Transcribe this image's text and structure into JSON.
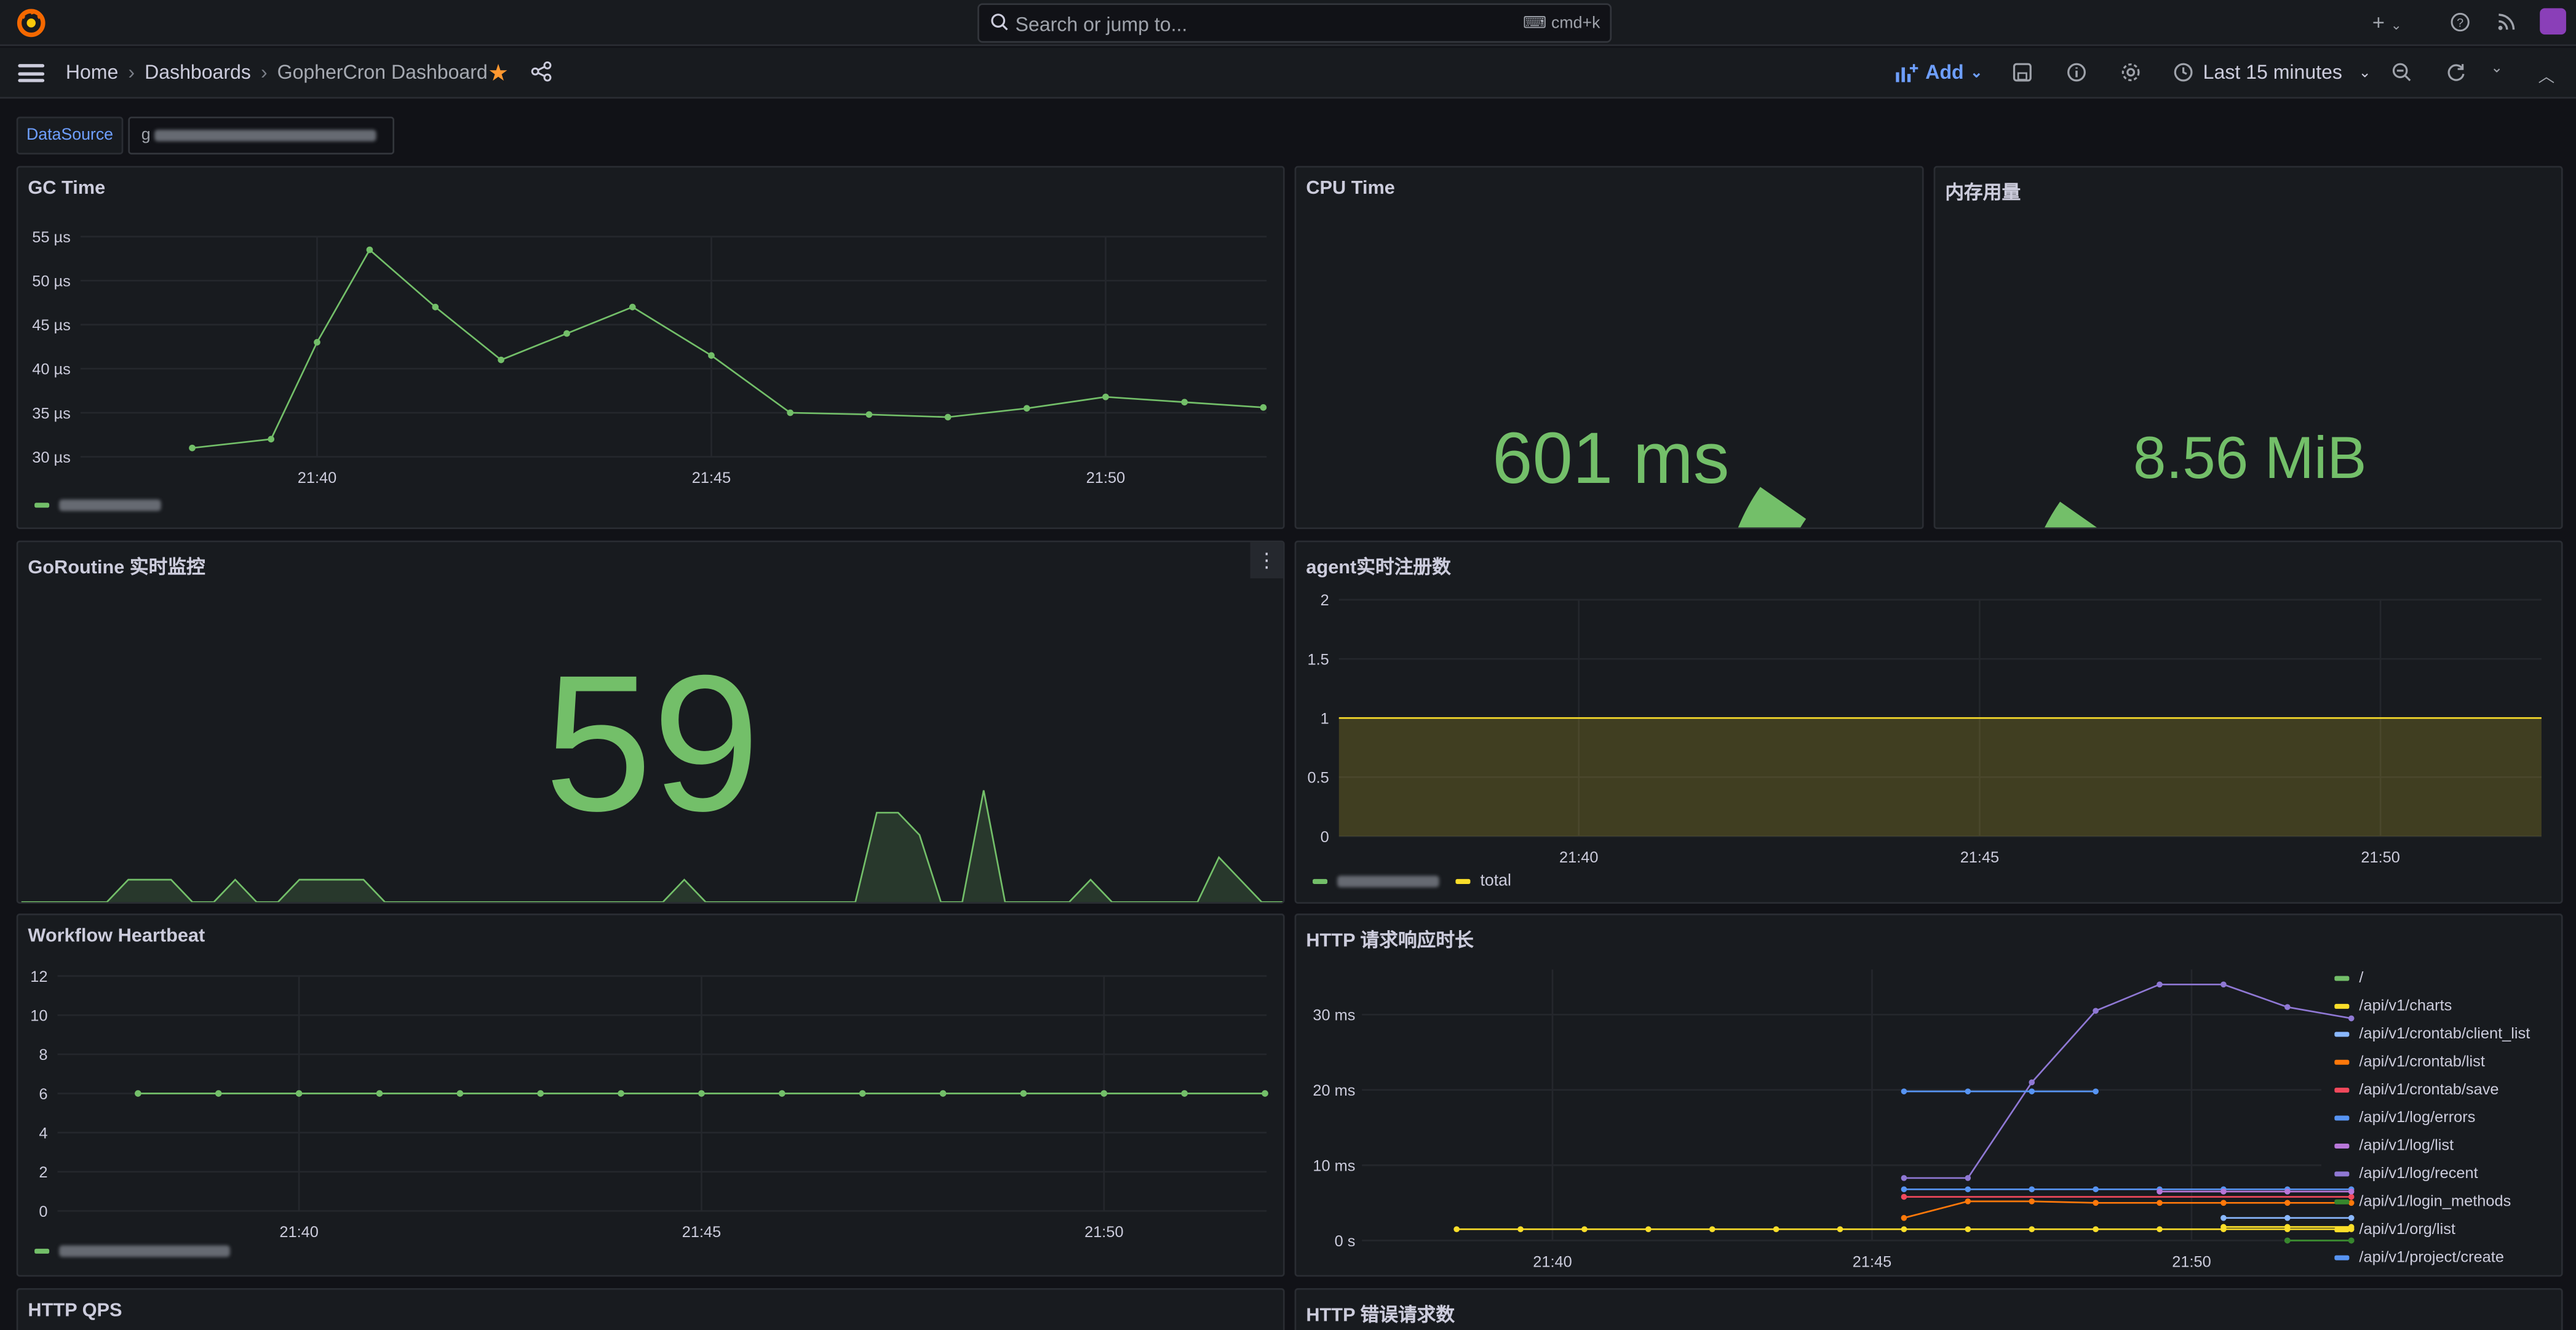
{
  "topbar": {
    "search_placeholder": "Search or jump to...",
    "search_shortcut": "cmd+k",
    "add_icon": "plus-icon",
    "help_icon": "help-icon",
    "news_icon": "rss-icon"
  },
  "breadcrumb": {
    "home": "Home",
    "dashboards": "Dashboards",
    "current": "GopherCron Dashboard"
  },
  "toolbar": {
    "add_label": "Add",
    "time_range": "Last 15 minutes"
  },
  "variables": {
    "datasource_label": "DataSource",
    "datasource_value": "g"
  },
  "colors": {
    "accent": "#6e9fff",
    "green": "#73bf69",
    "yellow": "#fade2a",
    "star": "#ff9830"
  },
  "panels": {
    "gc_time": {
      "title": "GC Time"
    },
    "cpu_time": {
      "title": "CPU Time",
      "value": "601 ms"
    },
    "memory": {
      "title": "内存用量",
      "value": "8.56 MiB"
    },
    "goroutine": {
      "title": "GoRoutine 实时监控",
      "value": "59"
    },
    "agent": {
      "title": "agent实时注册数",
      "legend_total": "total"
    },
    "workflow": {
      "title": "Workflow Heartbeat"
    },
    "http_latency": {
      "title": "HTTP 请求响应时长"
    },
    "http_qps": {
      "title": "HTTP QPS"
    },
    "http_errors": {
      "title": "HTTP 错误请求数"
    }
  },
  "chart_data": [
    {
      "id": "gc_time",
      "type": "line",
      "title": "GC Time",
      "x": [
        "21:38:25",
        "21:39:25",
        "21:40:00",
        "21:40:40",
        "21:41:30",
        "21:42:20",
        "21:43:10",
        "21:44:00",
        "21:45:00",
        "21:46:00",
        "21:47:00",
        "21:48:00",
        "21:49:00",
        "21:50:00",
        "21:51:00",
        "21:52:00"
      ],
      "values": [
        31,
        32,
        43,
        53.5,
        47,
        41,
        44,
        47,
        41.5,
        35,
        34.8,
        34.5,
        35.5,
        36.8,
        36.2,
        35.6
      ],
      "y_ticks": [
        "30 µs",
        "35 µs",
        "40 µs",
        "45 µs",
        "50 µs",
        "55 µs"
      ],
      "x_ticks": [
        "21:40",
        "21:45",
        "21:50"
      ],
      "unit": "µs",
      "ylim": [
        30,
        55
      ],
      "color": "#73bf69"
    },
    {
      "id": "cpu_time",
      "type": "gauge",
      "title": "CPU Time",
      "value": 601,
      "unit": "ms",
      "fill_fraction": 0.07,
      "color": "#73bf69"
    },
    {
      "id": "memory",
      "type": "gauge",
      "title": "内存用量",
      "value": 8.56,
      "unit": "MiB",
      "fill_fraction": 0.95,
      "color": "#73bf69"
    },
    {
      "id": "goroutine_spark",
      "type": "area",
      "title": "GoRoutine 实时监控",
      "value": 59,
      "values": [
        0,
        0,
        0,
        0,
        0,
        1,
        1,
        1,
        0,
        0,
        1,
        0,
        0,
        1,
        1,
        1,
        1,
        0,
        0,
        0,
        0,
        0,
        0,
        0,
        0,
        0,
        0,
        0,
        0,
        0,
        0,
        1,
        0,
        0,
        0,
        0,
        0,
        0,
        0,
        0,
        4,
        4,
        3,
        0,
        0,
        5,
        0,
        0,
        0,
        0,
        1,
        0,
        0,
        0,
        0,
        0,
        2,
        1,
        0,
        0
      ],
      "color": "#73bf69"
    },
    {
      "id": "agent",
      "type": "area",
      "title": "agent实时注册数",
      "y_ticks": [
        "0",
        "0.5",
        "1",
        "1.5",
        "2"
      ],
      "x_ticks": [
        "21:40",
        "21:45",
        "21:50"
      ],
      "ylim": [
        0,
        2
      ],
      "series": [
        {
          "name": "total",
          "values": [
            1,
            1
          ],
          "color": "#fade2a"
        }
      ]
    },
    {
      "id": "workflow",
      "type": "line",
      "title": "Workflow Heartbeat",
      "x": [
        "21:38:00",
        "21:39:00",
        "21:40:00",
        "21:41:00",
        "21:42:00",
        "21:43:00",
        "21:44:00",
        "21:45:00",
        "21:46:00",
        "21:47:00",
        "21:48:00",
        "21:49:00",
        "21:50:00",
        "21:51:00",
        "21:52:00"
      ],
      "values": [
        6,
        6,
        6,
        6,
        6,
        6,
        6,
        6,
        6,
        6,
        6,
        6,
        6,
        6,
        6
      ],
      "y_ticks": [
        "0",
        "2",
        "4",
        "6",
        "8",
        "10",
        "12"
      ],
      "x_ticks": [
        "21:40",
        "21:45",
        "21:50"
      ],
      "ylim": [
        0,
        12
      ],
      "color": "#73bf69"
    },
    {
      "id": "http_latency",
      "type": "line",
      "title": "HTTP 请求响应时长",
      "y_ticks": [
        "0 s",
        "10 ms",
        "20 ms",
        "30 ms"
      ],
      "x_ticks": [
        "21:40",
        "21:45",
        "21:50"
      ],
      "ylim": [
        0,
        36
      ],
      "unit": "ms",
      "x_minutes": [
        38.5,
        39.5,
        40.5,
        41.5,
        42.5,
        43.5,
        44.5,
        45.5,
        46.5,
        47.5,
        48.5,
        49.5,
        50.5,
        51.5,
        52.5
      ],
      "series": [
        {
          "name": "/",
          "color": "#73bf69",
          "points": [
            [
              51.5,
              0
            ],
            [
              52.5,
              0
            ]
          ]
        },
        {
          "name": "/api/v1/charts",
          "color": "#fade2a",
          "points": [
            [
              50.5,
              1.8
            ],
            [
              51.5,
              1.8
            ],
            [
              52.5,
              1.8
            ]
          ]
        },
        {
          "name": "/api/v1/crontab/client_list",
          "color": "#8ab8ff",
          "points": [
            [
              50.5,
              3
            ],
            [
              51.5,
              3
            ],
            [
              52.5,
              3
            ]
          ]
        },
        {
          "name": "/api/v1/crontab/list",
          "color": "#ff780a",
          "points": [
            [
              45.5,
              3
            ],
            [
              46.5,
              5.2
            ],
            [
              47.5,
              5.2
            ],
            [
              48.5,
              5
            ],
            [
              49.5,
              5
            ],
            [
              50.5,
              5
            ],
            [
              51.5,
              5
            ],
            [
              52.5,
              5
            ]
          ]
        },
        {
          "name": "/api/v1/crontab/save",
          "color": "#f2495c",
          "points": [
            [
              45.5,
              5.8
            ],
            [
              52.5,
              5.8
            ]
          ]
        },
        {
          "name": "/api/v1/log/errors",
          "color": "#5794f2",
          "points": [
            [
              45.5,
              6.8
            ],
            [
              46.5,
              6.8
            ],
            [
              47.5,
              6.8
            ],
            [
              48.5,
              6.8
            ],
            [
              49.5,
              6.8
            ],
            [
              50.5,
              6.8
            ],
            [
              51.5,
              6.8
            ],
            [
              52.5,
              6.8
            ]
          ]
        },
        {
          "name": "/api/v1/log/list",
          "color": "#b877d9",
          "points": [
            [
              49.5,
              6.5
            ],
            [
              50.5,
              6.5
            ],
            [
              51.5,
              6.5
            ],
            [
              52.5,
              6.5
            ]
          ]
        },
        {
          "name": "/api/v1/log/recent",
          "color": "#8f78d4",
          "points": [
            [
              45.5,
              8.3
            ],
            [
              46.5,
              8.3
            ],
            [
              47.5,
              21
            ],
            [
              48.5,
              30.5
            ],
            [
              49.5,
              34
            ],
            [
              50.5,
              34
            ],
            [
              51.5,
              31
            ],
            [
              52.5,
              29.5
            ]
          ]
        },
        {
          "name": "/api/v1/login_methods",
          "color": "#37872d",
          "points": [
            [
              51.5,
              0
            ],
            [
              52.5,
              0
            ]
          ]
        },
        {
          "name": "/api/v1/org/list",
          "color": "#fade2a",
          "points": [
            [
              38.5,
              1.5
            ],
            [
              39.5,
              1.5
            ],
            [
              40.5,
              1.5
            ],
            [
              41.5,
              1.5
            ],
            [
              42.5,
              1.5
            ],
            [
              43.5,
              1.5
            ],
            [
              44.5,
              1.5
            ],
            [
              45.5,
              1.5
            ],
            [
              46.5,
              1.5
            ],
            [
              47.5,
              1.5
            ],
            [
              48.5,
              1.5
            ],
            [
              49.5,
              1.5
            ],
            [
              50.5,
              1.5
            ],
            [
              51.5,
              1.5
            ],
            [
              52.5,
              1.5
            ]
          ]
        },
        {
          "name": "/api/v1/project/create",
          "color": "#5794f2",
          "points": [
            [
              45.5,
              19.8
            ],
            [
              46.5,
              19.8
            ],
            [
              47.5,
              19.8
            ],
            [
              48.5,
              19.8
            ]
          ]
        }
      ]
    }
  ]
}
